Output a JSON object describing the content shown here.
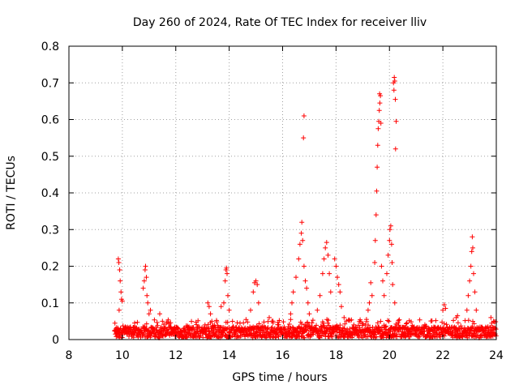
{
  "chart_data": {
    "type": "scatter",
    "title": "Day 260 of 2024, Rate Of TEC Index for receiver lliv",
    "xlabel": "GPS time / hours",
    "ylabel": "ROTI / TECUs",
    "xlim": [
      8,
      24
    ],
    "ylim": [
      0,
      0.8
    ],
    "x_ticks": [
      8,
      10,
      12,
      14,
      16,
      18,
      20,
      22,
      24
    ],
    "y_ticks": [
      0,
      0.1,
      0.2,
      0.3,
      0.4,
      0.5,
      0.6,
      0.7,
      0.8
    ],
    "x_tick_labels": [
      "8",
      "10",
      "12",
      "14",
      "16",
      "18",
      "20",
      "22",
      "24"
    ],
    "y_tick_labels": [
      "0",
      "0.1",
      "0.2",
      "0.3",
      "0.4",
      "0.5",
      "0.6",
      "0.7",
      "0.8"
    ],
    "grid": true,
    "marker": "+",
    "color": "#ff0000",
    "series": [
      {
        "name": "ROTI",
        "baseline_range_hours": [
          9.7,
          24.0
        ],
        "points": [
          [
            9.85,
            0.22
          ],
          [
            9.87,
            0.21
          ],
          [
            9.9,
            0.19
          ],
          [
            9.92,
            0.16
          ],
          [
            9.95,
            0.13
          ],
          [
            9.97,
            0.11
          ],
          [
            10.0,
            0.105
          ],
          [
            9.88,
            0.08
          ],
          [
            10.78,
            0.14
          ],
          [
            10.82,
            0.16
          ],
          [
            10.85,
            0.19
          ],
          [
            10.87,
            0.2
          ],
          [
            10.9,
            0.17
          ],
          [
            10.92,
            0.12
          ],
          [
            10.95,
            0.1
          ],
          [
            11.0,
            0.07
          ],
          [
            11.05,
            0.08
          ],
          [
            11.4,
            0.07
          ],
          [
            11.5,
            0.05
          ],
          [
            13.2,
            0.1
          ],
          [
            13.25,
            0.09
          ],
          [
            13.3,
            0.07
          ],
          [
            13.35,
            0.05
          ],
          [
            13.7,
            0.09
          ],
          [
            13.8,
            0.1
          ],
          [
            13.85,
            0.16
          ],
          [
            13.88,
            0.19
          ],
          [
            13.9,
            0.195
          ],
          [
            13.92,
            0.18
          ],
          [
            13.95,
            0.12
          ],
          [
            14.0,
            0.08
          ],
          [
            14.8,
            0.08
          ],
          [
            14.9,
            0.13
          ],
          [
            14.95,
            0.155
          ],
          [
            15.0,
            0.16
          ],
          [
            15.05,
            0.15
          ],
          [
            15.1,
            0.1
          ],
          [
            15.5,
            0.06
          ],
          [
            15.6,
            0.05
          ],
          [
            16.3,
            0.07
          ],
          [
            16.35,
            0.1
          ],
          [
            16.4,
            0.13
          ],
          [
            16.5,
            0.17
          ],
          [
            16.6,
            0.22
          ],
          [
            16.65,
            0.26
          ],
          [
            16.7,
            0.29
          ],
          [
            16.72,
            0.32
          ],
          [
            16.75,
            0.27
          ],
          [
            16.8,
            0.2
          ],
          [
            16.85,
            0.16
          ],
          [
            16.8,
            0.61
          ],
          [
            16.78,
            0.55
          ],
          [
            16.9,
            0.14
          ],
          [
            16.95,
            0.1
          ],
          [
            17.0,
            0.07
          ],
          [
            17.3,
            0.08
          ],
          [
            17.4,
            0.12
          ],
          [
            17.5,
            0.18
          ],
          [
            17.55,
            0.22
          ],
          [
            17.6,
            0.25
          ],
          [
            17.65,
            0.265
          ],
          [
            17.7,
            0.23
          ],
          [
            17.75,
            0.18
          ],
          [
            17.8,
            0.13
          ],
          [
            17.95,
            0.22
          ],
          [
            18.0,
            0.2
          ],
          [
            18.05,
            0.17
          ],
          [
            18.1,
            0.15
          ],
          [
            18.15,
            0.13
          ],
          [
            18.2,
            0.09
          ],
          [
            18.3,
            0.06
          ],
          [
            19.2,
            0.08
          ],
          [
            19.25,
            0.1
          ],
          [
            19.3,
            0.155
          ],
          [
            19.35,
            0.12
          ],
          [
            19.45,
            0.21
          ],
          [
            19.47,
            0.27
          ],
          [
            19.5,
            0.34
          ],
          [
            19.52,
            0.405
          ],
          [
            19.54,
            0.47
          ],
          [
            19.56,
            0.53
          ],
          [
            19.58,
            0.575
          ],
          [
            19.6,
            0.595
          ],
          [
            19.62,
            0.625
          ],
          [
            19.64,
            0.645
          ],
          [
            19.66,
            0.665
          ],
          [
            19.63,
            0.67
          ],
          [
            19.68,
            0.59
          ],
          [
            19.7,
            0.2
          ],
          [
            19.75,
            0.16
          ],
          [
            19.8,
            0.12
          ],
          [
            19.9,
            0.18
          ],
          [
            19.95,
            0.23
          ],
          [
            20.0,
            0.27
          ],
          [
            20.02,
            0.3
          ],
          [
            20.05,
            0.31
          ],
          [
            20.08,
            0.26
          ],
          [
            20.1,
            0.21
          ],
          [
            20.15,
            0.7
          ],
          [
            20.18,
            0.715
          ],
          [
            20.2,
            0.705
          ],
          [
            20.17,
            0.68
          ],
          [
            20.22,
            0.655
          ],
          [
            20.25,
            0.595
          ],
          [
            20.23,
            0.52
          ],
          [
            20.12,
            0.15
          ],
          [
            20.2,
            0.1
          ],
          [
            22.0,
            0.08
          ],
          [
            22.05,
            0.095
          ],
          [
            22.1,
            0.085
          ],
          [
            22.5,
            0.06
          ],
          [
            22.55,
            0.065
          ],
          [
            22.9,
            0.08
          ],
          [
            22.95,
            0.12
          ],
          [
            23.0,
            0.16
          ],
          [
            23.05,
            0.2
          ],
          [
            23.08,
            0.24
          ],
          [
            23.1,
            0.28
          ],
          [
            23.12,
            0.25
          ],
          [
            23.15,
            0.18
          ],
          [
            23.2,
            0.13
          ],
          [
            23.25,
            0.08
          ],
          [
            23.8,
            0.06
          ],
          [
            23.9,
            0.05
          ]
        ]
      }
    ]
  }
}
